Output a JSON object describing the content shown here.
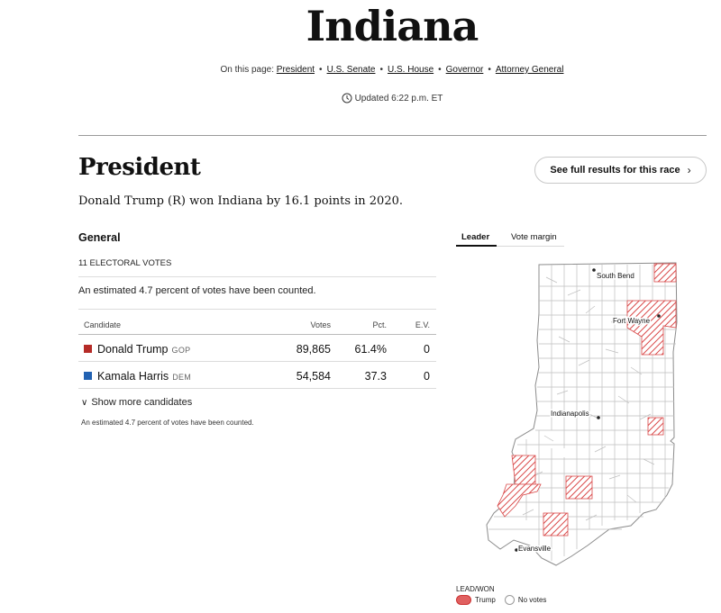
{
  "header": {
    "state": "Indiana",
    "on_this_page_label": "On this page:",
    "links": [
      "President",
      "U.S. Senate",
      "U.S. House",
      "Governor",
      "Attorney General"
    ],
    "updated": "Updated 6:22 p.m. ET"
  },
  "race": {
    "title": "President",
    "full_results_label": "See full results for this race",
    "summary": "Donald Trump (R) won Indiana by 16.1 points in 2020.",
    "section": "General",
    "electoral_votes": "11 ELECTORAL VOTES",
    "estimate": "An estimated 4.7 percent of votes have been counted.",
    "columns": {
      "candidate": "Candidate",
      "votes": "Votes",
      "pct": "Pct.",
      "ev": "E.V."
    },
    "candidates": [
      {
        "name": "Donald Trump",
        "party": "GOP",
        "votes": "89,865",
        "pct": "61.4%",
        "ev": "0",
        "color": "#b52b27"
      },
      {
        "name": "Kamala Harris",
        "party": "DEM",
        "votes": "54,584",
        "pct": "37.3",
        "ev": "0",
        "color": "#2262b2"
      }
    ],
    "show_more": "Show more candidates",
    "footnote": "An estimated 4.7 percent of votes have been counted."
  },
  "map": {
    "tabs": [
      "Leader",
      "Vote margin"
    ],
    "active_tab": "Leader",
    "cities": [
      "South Bend",
      "Fort Wayne",
      "Indianapolis",
      "Evansville"
    ],
    "legend_title": "LEAD/WON",
    "legend_items": [
      "Trump",
      "No votes"
    ],
    "colors": {
      "trump": "#e06060",
      "hatch": "#d94848",
      "outline": "#bfbfbf"
    }
  }
}
